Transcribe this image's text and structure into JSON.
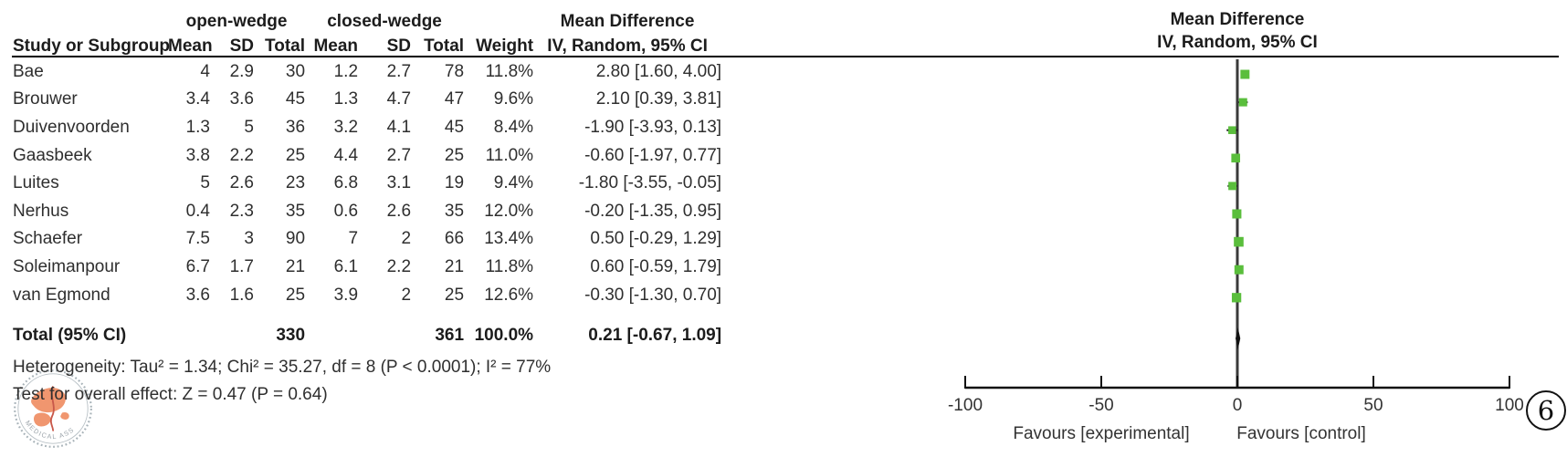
{
  "table": {
    "group_headers": {
      "open_wedge": "open-wedge",
      "closed_wedge": "closed-wedge",
      "mean_difference": "Mean Difference"
    },
    "columns": [
      "Study or Subgroup",
      "Mean",
      "SD",
      "Total",
      "Mean",
      "SD",
      "Total",
      "Weight",
      "IV, Random, 95% CI"
    ],
    "studies": [
      {
        "name": "Bae",
        "mean1": "4",
        "sd1": "2.9",
        "total1": "30",
        "mean2": "1.2",
        "sd2": "2.7",
        "total2": "78",
        "weight": "11.8%",
        "ci_text": "2.80 [1.60, 4.00]"
      },
      {
        "name": "Brouwer",
        "mean1": "3.4",
        "sd1": "3.6",
        "total1": "45",
        "mean2": "1.3",
        "sd2": "4.7",
        "total2": "47",
        "weight": "9.6%",
        "ci_text": "2.10 [0.39, 3.81]"
      },
      {
        "name": "Duivenvoorden",
        "mean1": "1.3",
        "sd1": "5",
        "total1": "36",
        "mean2": "3.2",
        "sd2": "4.1",
        "total2": "45",
        "weight": "8.4%",
        "ci_text": "-1.90 [-3.93, 0.13]"
      },
      {
        "name": "Gaasbeek",
        "mean1": "3.8",
        "sd1": "2.2",
        "total1": "25",
        "mean2": "4.4",
        "sd2": "2.7",
        "total2": "25",
        "weight": "11.0%",
        "ci_text": "-0.60 [-1.97, 0.77]"
      },
      {
        "name": "Luites",
        "mean1": "5",
        "sd1": "2.6",
        "total1": "23",
        "mean2": "6.8",
        "sd2": "3.1",
        "total2": "19",
        "weight": "9.4%",
        "ci_text": "-1.80 [-3.55, -0.05]"
      },
      {
        "name": "Nerhus",
        "mean1": "0.4",
        "sd1": "2.3",
        "total1": "35",
        "mean2": "0.6",
        "sd2": "2.6",
        "total2": "35",
        "weight": "12.0%",
        "ci_text": "-0.20 [-1.35, 0.95]"
      },
      {
        "name": "Schaefer",
        "mean1": "7.5",
        "sd1": "3",
        "total1": "90",
        "mean2": "7",
        "sd2": "2",
        "total2": "66",
        "weight": "13.4%",
        "ci_text": "0.50 [-0.29, 1.29]"
      },
      {
        "name": "Soleimanpour",
        "mean1": "6.7",
        "sd1": "1.7",
        "total1": "21",
        "mean2": "6.1",
        "sd2": "2.2",
        "total2": "21",
        "weight": "11.8%",
        "ci_text": "0.60 [-0.59, 1.79]"
      },
      {
        "name": "van Egmond",
        "mean1": "3.6",
        "sd1": "1.6",
        "total1": "25",
        "mean2": "3.9",
        "sd2": "2",
        "total2": "25",
        "weight": "12.6%",
        "ci_text": "-0.30 [-1.30, 0.70]"
      }
    ],
    "total_row": {
      "label": "Total (95% CI)",
      "total1": "330",
      "total2": "361",
      "weight": "100.0%",
      "ci_text": "0.21 [-0.67, 1.09]"
    },
    "heterogeneity": "Heterogeneity: Tau² = 1.34; Chi² = 35.27, df = 8 (P < 0.0001); I² = 77%",
    "overall_effect": "Test for overall effect: Z = 0.47 (P = 0.64)"
  },
  "plot": {
    "header_line1": "Mean Difference",
    "header_line2": "IV, Random, 95% CI",
    "favours_left": "Favours [experimental]",
    "favours_right": "Favours [control]",
    "marker_color": "#5abe3c",
    "line_color": "#3a3a3a",
    "axis_color": "#111111"
  },
  "figure_number": "6",
  "watermark": {
    "arc_text": "MEDICAL ASS"
  },
  "chart_data": {
    "type": "forest",
    "title": "Mean Difference",
    "subtitle": "IV, Random, 95% CI",
    "effect_measure": "Mean Difference (IV, Random, 95% CI)",
    "x_axis": {
      "range": [
        -100,
        100
      ],
      "ticks": [
        -100,
        -50,
        0,
        50,
        100
      ],
      "label_left": "Favours [experimental]",
      "label_right": "Favours [control]"
    },
    "studies": [
      {
        "study": "Bae",
        "md": 2.8,
        "ci_low": 1.6,
        "ci_high": 4.0,
        "weight_pct": 11.8
      },
      {
        "study": "Brouwer",
        "md": 2.1,
        "ci_low": 0.39,
        "ci_high": 3.81,
        "weight_pct": 9.6
      },
      {
        "study": "Duivenvoorden",
        "md": -1.9,
        "ci_low": -3.93,
        "ci_high": 0.13,
        "weight_pct": 8.4
      },
      {
        "study": "Gaasbeek",
        "md": -0.6,
        "ci_low": -1.97,
        "ci_high": 0.77,
        "weight_pct": 11.0
      },
      {
        "study": "Luites",
        "md": -1.8,
        "ci_low": -3.55,
        "ci_high": -0.05,
        "weight_pct": 9.4
      },
      {
        "study": "Nerhus",
        "md": -0.2,
        "ci_low": -1.35,
        "ci_high": 0.95,
        "weight_pct": 12.0
      },
      {
        "study": "Schaefer",
        "md": 0.5,
        "ci_low": -0.29,
        "ci_high": 1.29,
        "weight_pct": 13.4
      },
      {
        "study": "Soleimanpour",
        "md": 0.6,
        "ci_low": -0.59,
        "ci_high": 1.79,
        "weight_pct": 11.8
      },
      {
        "study": "van Egmond",
        "md": -0.3,
        "ci_low": -1.3,
        "ci_high": 0.7,
        "weight_pct": 12.6
      }
    ],
    "total": {
      "label": "Total (95% CI)",
      "md": 0.21,
      "ci_low": -0.67,
      "ci_high": 1.09,
      "weight_pct": 100.0,
      "n_experimental": 330,
      "n_control": 361
    },
    "heterogeneity": {
      "tau2": 1.34,
      "chi2": 35.27,
      "df": 8,
      "p": "< 0.0001",
      "i2_pct": 77
    },
    "overall_effect": {
      "z": 0.47,
      "p": 0.64
    }
  }
}
